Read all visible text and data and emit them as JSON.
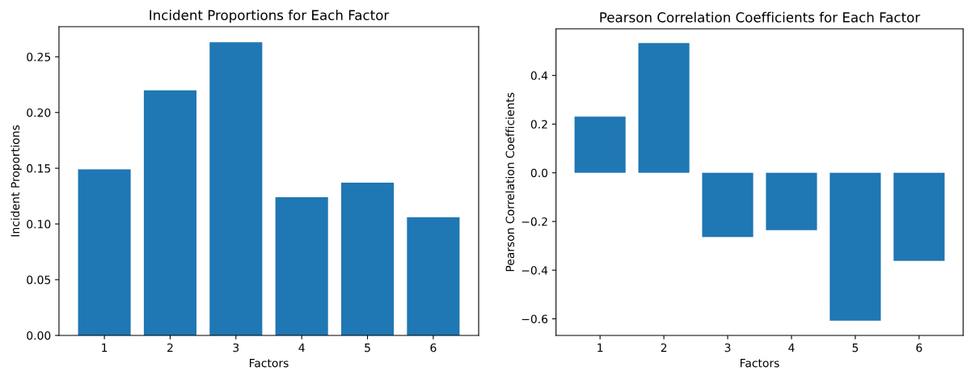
{
  "chart_data": [
    {
      "type": "bar",
      "title": "Incident Proportions for Each Factor",
      "xlabel": "Factors",
      "ylabel": "Incident Proportions",
      "categories": [
        "1",
        "2",
        "3",
        "4",
        "5",
        "6"
      ],
      "values": [
        0.149,
        0.22,
        0.263,
        0.124,
        0.137,
        0.106
      ],
      "color": "#1f77b4",
      "ylim": [
        0,
        0.277
      ],
      "yticks": [
        {
          "value": 0,
          "label": "0.00"
        },
        0.05,
        {
          "value": 0.1,
          "label": "0.10"
        },
        0.15,
        {
          "value": 0.2,
          "label": "0.20"
        },
        0.25
      ]
    },
    {
      "type": "bar",
      "title": "Pearson Correlation Coefficients for Each Factor",
      "xlabel": "Factors",
      "ylabel": "Pearson Correlation Coefficients",
      "categories": [
        "1",
        "2",
        "3",
        "4",
        "5",
        "6"
      ],
      "values": [
        0.231,
        0.533,
        -0.264,
        -0.236,
        -0.608,
        -0.362
      ],
      "color": "#1f77b4",
      "ylim": [
        -0.668,
        0.591
      ],
      "yticks": [
        {
          "value": -0.6,
          "label": "−0.6"
        },
        {
          "value": -0.4,
          "label": "−0.4"
        },
        {
          "value": -0.2,
          "label": "−0.2"
        },
        {
          "value": 0,
          "label": "0.0"
        },
        0.2,
        0.4
      ]
    }
  ]
}
